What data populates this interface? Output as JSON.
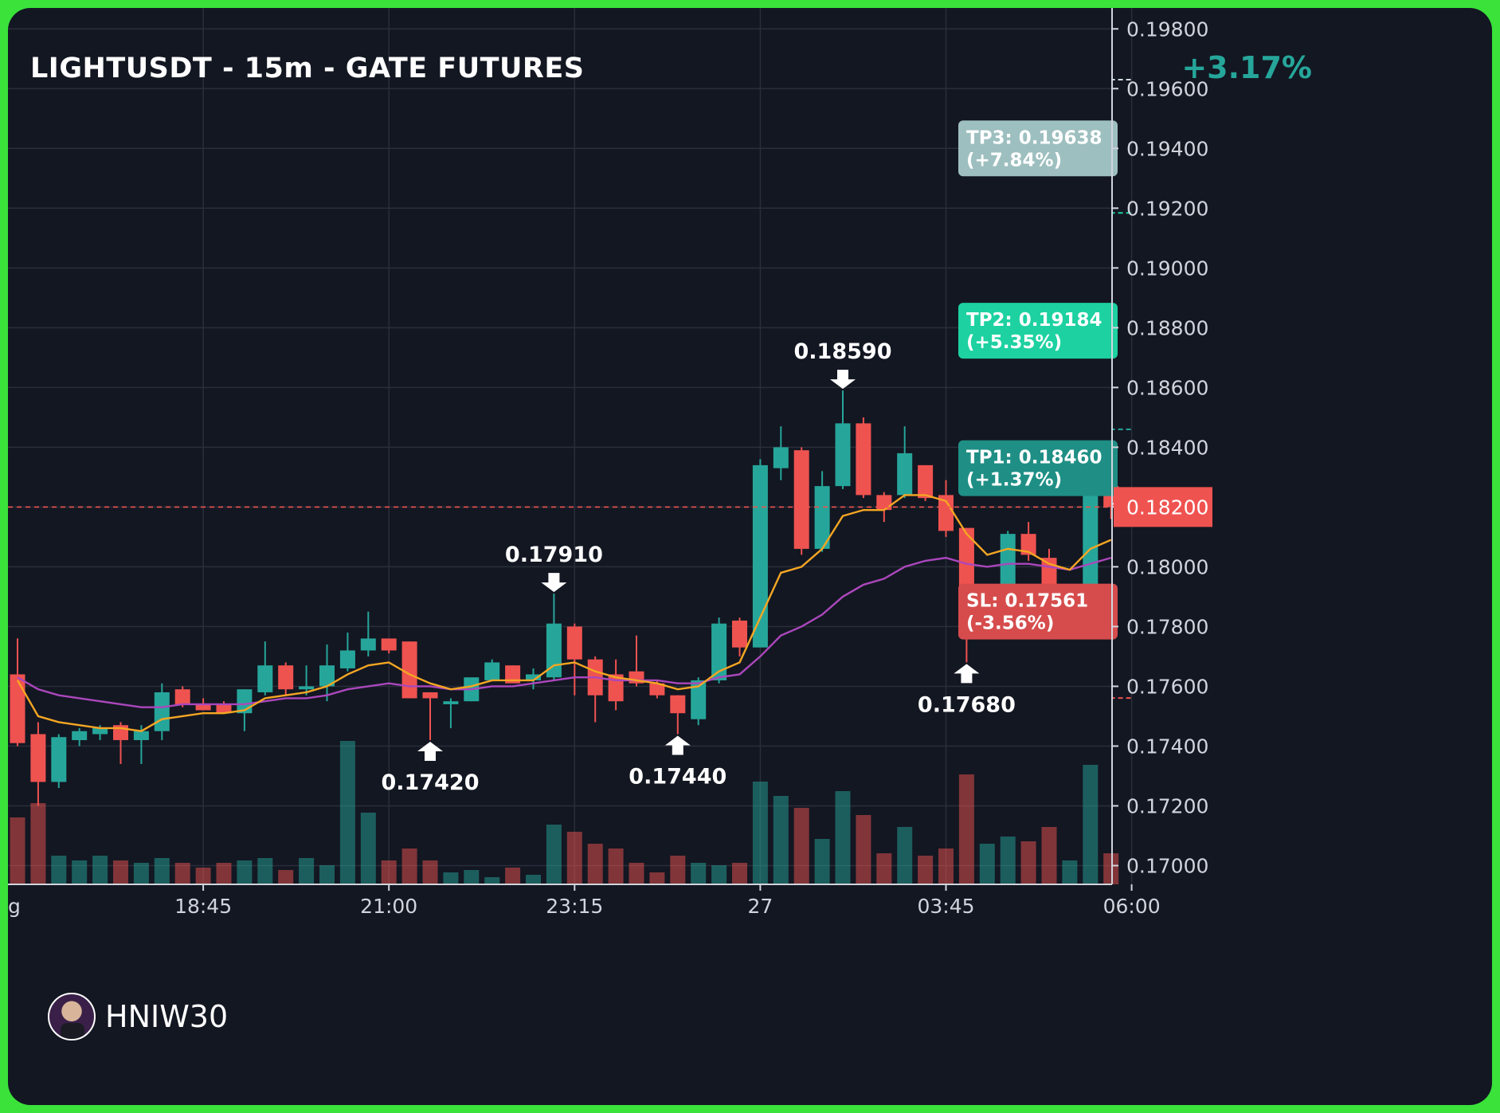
{
  "header": {
    "title": "LIGHTUSDT - 15m - GATE FUTURES",
    "change_pct": "+3.17%"
  },
  "brand": {
    "name": "HNIW30",
    "avatar_icon": "avatar-icon"
  },
  "colors": {
    "background": "#131722",
    "frame": "#3ae23a",
    "bull": "#26a69a",
    "bear": "#ef5350",
    "ema_fast": "#f5a623",
    "ema_slow": "#ab47bc",
    "entry_line": "#ef5350",
    "tp2_label": "#1dd1a1",
    "tp1_label": "#1f8f85",
    "tp3_label": "#9ebfbf",
    "sl_label": "#d64c4c"
  },
  "chart_data": {
    "type": "candlestick",
    "ylim": [
      0.1694,
      0.1983
    ],
    "yticks": [
      "0.19800",
      "0.19600",
      "0.19400",
      "0.19200",
      "0.19000",
      "0.18800",
      "0.18600",
      "0.18400",
      "0.18200",
      "0.18000",
      "0.17800",
      "0.17600",
      "0.17400",
      "0.17200",
      "0.17000"
    ],
    "xticks": [
      {
        "label": "g",
        "index": 0
      },
      {
        "label": "18:45",
        "index": 9
      },
      {
        "label": "21:00",
        "index": 18
      },
      {
        "label": "23:15",
        "index": 27
      },
      {
        "label": "27",
        "index": 36
      },
      {
        "label": "03:45",
        "index": 45
      },
      {
        "label": "06:00",
        "index": 54
      }
    ],
    "candles": [
      {
        "o": 0.1764,
        "h": 0.1776,
        "l": 0.174,
        "c": 0.1741,
        "v": 0.28
      },
      {
        "o": 0.1744,
        "h": 0.1748,
        "l": 0.172,
        "c": 0.1728,
        "v": 0.34
      },
      {
        "o": 0.1728,
        "h": 0.1744,
        "l": 0.1726,
        "c": 0.1743,
        "v": 0.12
      },
      {
        "o": 0.1742,
        "h": 0.1746,
        "l": 0.174,
        "c": 0.1745,
        "v": 0.1
      },
      {
        "o": 0.1744,
        "h": 0.1747,
        "l": 0.1742,
        "c": 0.1746,
        "v": 0.12
      },
      {
        "o": 0.1747,
        "h": 0.1748,
        "l": 0.1734,
        "c": 0.1742,
        "v": 0.1
      },
      {
        "o": 0.1742,
        "h": 0.1747,
        "l": 0.1734,
        "c": 0.1745,
        "v": 0.09
      },
      {
        "o": 0.1745,
        "h": 0.1761,
        "l": 0.1742,
        "c": 0.1758,
        "v": 0.11
      },
      {
        "o": 0.1759,
        "h": 0.176,
        "l": 0.1753,
        "c": 0.1754,
        "v": 0.09
      },
      {
        "o": 0.1754,
        "h": 0.1756,
        "l": 0.1752,
        "c": 0.1752,
        "v": 0.07
      },
      {
        "o": 0.1754,
        "h": 0.1755,
        "l": 0.1751,
        "c": 0.1751,
        "v": 0.09
      },
      {
        "o": 0.1751,
        "h": 0.1759,
        "l": 0.1745,
        "c": 0.1759,
        "v": 0.1
      },
      {
        "o": 0.1758,
        "h": 0.1775,
        "l": 0.1757,
        "c": 0.1767,
        "v": 0.11
      },
      {
        "o": 0.1767,
        "h": 0.1768,
        "l": 0.1757,
        "c": 0.1759,
        "v": 0.06
      },
      {
        "o": 0.1759,
        "h": 0.1767,
        "l": 0.1757,
        "c": 0.176,
        "v": 0.11
      },
      {
        "o": 0.176,
        "h": 0.1774,
        "l": 0.1755,
        "c": 0.1767,
        "v": 0.08
      },
      {
        "o": 0.1766,
        "h": 0.1778,
        "l": 0.1765,
        "c": 0.1772,
        "v": 0.6
      },
      {
        "o": 0.1772,
        "h": 0.1785,
        "l": 0.177,
        "c": 0.1776,
        "v": 0.3
      },
      {
        "o": 0.1776,
        "h": 0.1776,
        "l": 0.1771,
        "c": 0.1772,
        "v": 0.1
      },
      {
        "o": 0.1775,
        "h": 0.1775,
        "l": 0.1756,
        "c": 0.1756,
        "v": 0.15
      },
      {
        "o": 0.1758,
        "h": 0.1758,
        "l": 0.1742,
        "c": 0.1756,
        "v": 0.1
      },
      {
        "o": 0.1754,
        "h": 0.1756,
        "l": 0.1746,
        "c": 0.1755,
        "v": 0.05
      },
      {
        "o": 0.1755,
        "h": 0.1762,
        "l": 0.1755,
        "c": 0.1763,
        "v": 0.06
      },
      {
        "o": 0.1762,
        "h": 0.1769,
        "l": 0.1762,
        "c": 0.1768,
        "v": 0.03
      },
      {
        "o": 0.1767,
        "h": 0.1767,
        "l": 0.1762,
        "c": 0.1761,
        "v": 0.07
      },
      {
        "o": 0.1762,
        "h": 0.1766,
        "l": 0.1759,
        "c": 0.1764,
        "v": 0.04
      },
      {
        "o": 0.1763,
        "h": 0.1791,
        "l": 0.1762,
        "c": 0.1781,
        "v": 0.25
      },
      {
        "o": 0.178,
        "h": 0.1781,
        "l": 0.1757,
        "c": 0.1769,
        "v": 0.22
      },
      {
        "o": 0.1769,
        "h": 0.177,
        "l": 0.1748,
        "c": 0.1757,
        "v": 0.17
      },
      {
        "o": 0.1764,
        "h": 0.1769,
        "l": 0.1752,
        "c": 0.1755,
        "v": 0.15
      },
      {
        "o": 0.1765,
        "h": 0.1777,
        "l": 0.176,
        "c": 0.1761,
        "v": 0.09
      },
      {
        "o": 0.1761,
        "h": 0.1762,
        "l": 0.1756,
        "c": 0.1757,
        "v": 0.05
      },
      {
        "o": 0.1757,
        "h": 0.1757,
        "l": 0.1744,
        "c": 0.1751,
        "v": 0.12
      },
      {
        "o": 0.1749,
        "h": 0.1763,
        "l": 0.1747,
        "c": 0.1762,
        "v": 0.09
      },
      {
        "o": 0.1762,
        "h": 0.1783,
        "l": 0.1761,
        "c": 0.1781,
        "v": 0.08
      },
      {
        "o": 0.1782,
        "h": 0.1783,
        "l": 0.177,
        "c": 0.1773,
        "v": 0.09
      },
      {
        "o": 0.1773,
        "h": 0.1836,
        "l": 0.1773,
        "c": 0.1834,
        "v": 0.43
      },
      {
        "o": 0.1833,
        "h": 0.1847,
        "l": 0.1829,
        "c": 0.184,
        "v": 0.37
      },
      {
        "o": 0.1839,
        "h": 0.184,
        "l": 0.1804,
        "c": 0.1806,
        "v": 0.32
      },
      {
        "o": 0.1806,
        "h": 0.1832,
        "l": 0.1805,
        "c": 0.1827,
        "v": 0.19
      },
      {
        "o": 0.1827,
        "h": 0.1859,
        "l": 0.1826,
        "c": 0.1848,
        "v": 0.39
      },
      {
        "o": 0.1848,
        "h": 0.185,
        "l": 0.1823,
        "c": 0.1824,
        "v": 0.29
      },
      {
        "o": 0.1824,
        "h": 0.1825,
        "l": 0.1815,
        "c": 0.1819,
        "v": 0.13
      },
      {
        "o": 0.1824,
        "h": 0.1847,
        "l": 0.1823,
        "c": 0.1838,
        "v": 0.24
      },
      {
        "o": 0.1834,
        "h": 0.1834,
        "l": 0.1822,
        "c": 0.1823,
        "v": 0.12
      },
      {
        "o": 0.1824,
        "h": 0.1829,
        "l": 0.181,
        "c": 0.1812,
        "v": 0.15
      },
      {
        "o": 0.1813,
        "h": 0.1813,
        "l": 0.1768,
        "c": 0.1779,
        "v": 0.46
      },
      {
        "o": 0.1779,
        "h": 0.1786,
        "l": 0.1776,
        "c": 0.1786,
        "v": 0.17
      },
      {
        "o": 0.1787,
        "h": 0.1812,
        "l": 0.1786,
        "c": 0.1811,
        "v": 0.2
      },
      {
        "o": 0.1811,
        "h": 0.1815,
        "l": 0.1802,
        "c": 0.1804,
        "v": 0.18
      },
      {
        "o": 0.1803,
        "h": 0.1806,
        "l": 0.1783,
        "c": 0.1784,
        "v": 0.24
      },
      {
        "o": 0.1784,
        "h": 0.1794,
        "l": 0.1779,
        "c": 0.1794,
        "v": 0.1
      },
      {
        "o": 0.1794,
        "h": 0.1837,
        "l": 0.1793,
        "c": 0.1826,
        "v": 0.5
      },
      {
        "o": 0.1827,
        "h": 0.1833,
        "l": 0.1816,
        "c": 0.182,
        "v": 0.13
      }
    ],
    "ema_fast": [
      0.1762,
      0.175,
      0.1748,
      0.1747,
      0.1746,
      0.1746,
      0.1745,
      0.1749,
      0.175,
      0.1751,
      0.1751,
      0.1752,
      0.1756,
      0.1757,
      0.1758,
      0.176,
      0.1764,
      0.1767,
      0.1768,
      0.1764,
      0.1761,
      0.1759,
      0.176,
      0.1762,
      0.1762,
      0.1762,
      0.1767,
      0.1768,
      0.1765,
      0.1763,
      0.1762,
      0.1761,
      0.1759,
      0.176,
      0.1765,
      0.1768,
      0.1783,
      0.1798,
      0.18,
      0.1806,
      0.1817,
      0.1819,
      0.1819,
      0.1824,
      0.1824,
      0.1822,
      0.1811,
      0.1804,
      0.1806,
      0.1805,
      0.1801,
      0.1799,
      0.1806,
      0.1809
    ],
    "ema_slow": [
      0.1763,
      0.1759,
      0.1757,
      0.1756,
      0.1755,
      0.1754,
      0.1753,
      0.1753,
      0.1754,
      0.1754,
      0.1754,
      0.1754,
      0.1755,
      0.1756,
      0.1756,
      0.1757,
      0.1759,
      0.176,
      0.1761,
      0.176,
      0.176,
      0.1759,
      0.1759,
      0.176,
      0.176,
      0.1761,
      0.1762,
      0.1763,
      0.1763,
      0.1762,
      0.1762,
      0.1762,
      0.1761,
      0.1761,
      0.1763,
      0.1764,
      0.177,
      0.1777,
      0.178,
      0.1784,
      0.179,
      0.1794,
      0.1796,
      0.18,
      0.1802,
      0.1803,
      0.1801,
      0.18,
      0.1801,
      0.1801,
      0.18,
      0.1799,
      0.1801,
      0.1803
    ],
    "swing_labels": [
      {
        "text": "0.18590",
        "index": 40,
        "price": 0.1859,
        "dir": "down"
      },
      {
        "text": "0.17910",
        "index": 26,
        "price": 0.1791,
        "dir": "down"
      },
      {
        "text": "0.17420",
        "index": 20,
        "price": 0.1742,
        "dir": "up"
      },
      {
        "text": "0.17440",
        "index": 32,
        "price": 0.1744,
        "dir": "up"
      },
      {
        "text": "0.17680",
        "index": 46,
        "price": 0.1768,
        "dir": "up"
      }
    ],
    "levels": {
      "entry": {
        "price": 0.182,
        "label": "0.18200"
      },
      "tp1": {
        "price": 0.1846,
        "text": "TP1: 0.18460",
        "pct": "(+1.37%)"
      },
      "tp2": {
        "price": 0.19184,
        "text": "TP2: 0.19184",
        "pct": "(+5.35%)"
      },
      "tp3": {
        "price": 0.19638,
        "text": "TP3: 0.19638",
        "pct": "(+7.84%)"
      },
      "sl": {
        "price": 0.17561,
        "text": "SL: 0.17561",
        "pct": "(-3.56%)"
      }
    }
  }
}
